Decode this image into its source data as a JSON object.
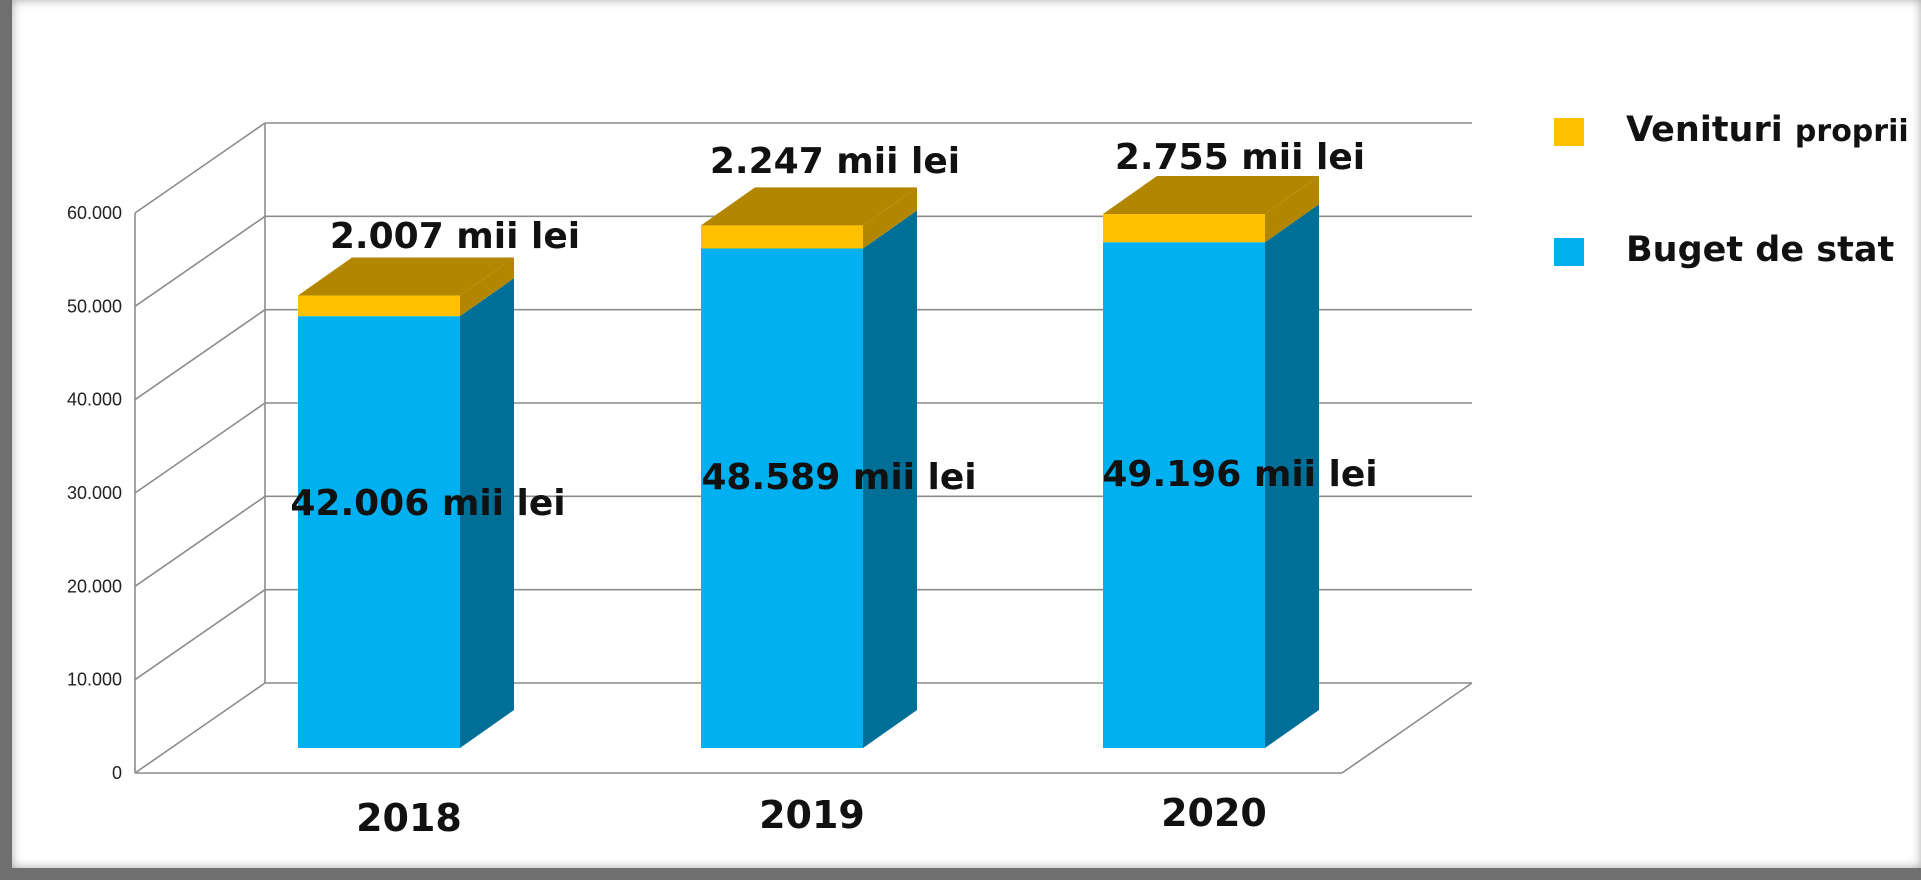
{
  "chart_data": {
    "type": "bar",
    "stacked": true,
    "three_d": true,
    "categories": [
      "2018",
      "2019",
      "2020"
    ],
    "series": [
      {
        "name": "Buget de stat",
        "color": "#00b0f0",
        "side_color": "#006f98",
        "values": [
          42006,
          48589,
          49196
        ],
        "labels": [
          "42.006 mii lei",
          "48.589 mii lei",
          "49.196 mii lei"
        ]
      },
      {
        "name": "Venituri proprii",
        "color": "#ffc000",
        "side_color": "#b38600",
        "values": [
          2007,
          2247,
          2755
        ],
        "labels": [
          "2.007 mii lei",
          "2.247 mii lei",
          "2.755 mii lei"
        ]
      }
    ],
    "yticks": [
      "0",
      "10.000",
      "20.000",
      "30.000",
      "40.000",
      "50.000",
      "60.000"
    ],
    "ylim": [
      0,
      60000
    ],
    "grid": true,
    "legend_position": "right",
    "legend": [
      {
        "main": "Venituri",
        "small": "proprii",
        "color": "#ffc000"
      },
      {
        "main": "Buget de stat",
        "small": "",
        "color": "#00b0f0"
      }
    ]
  }
}
